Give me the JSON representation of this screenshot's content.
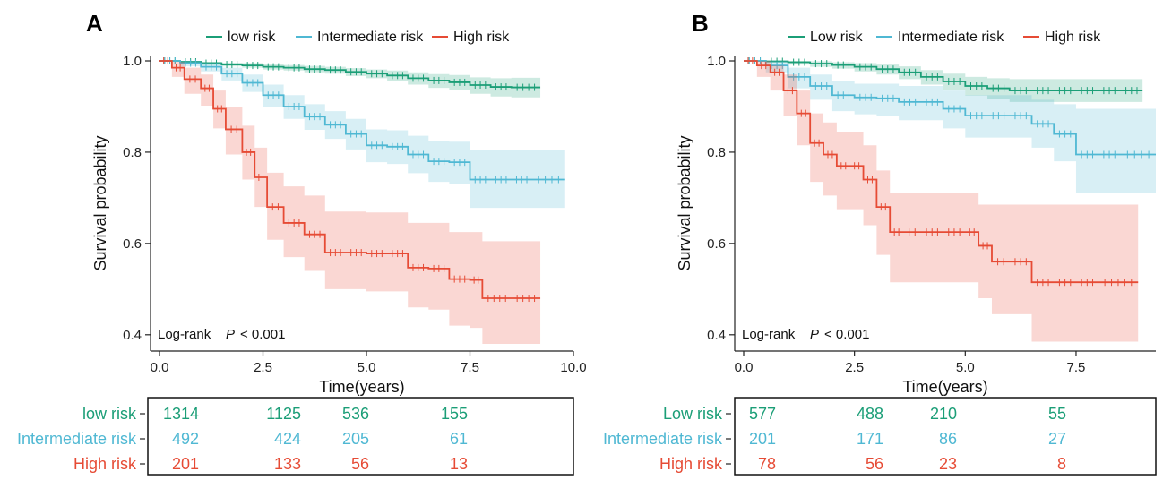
{
  "colors": {
    "low": "#1b9e77",
    "intermediate": "#4fb8d3",
    "high": "#e64b35"
  },
  "chart_data": [
    {
      "type": "line",
      "panel_label": "A",
      "xlabel": "Time(years)",
      "ylabel": "Survival probability",
      "xlim": [
        0,
        10
      ],
      "ylim": [
        0.38,
        1.0
      ],
      "xticks": [
        "0.0",
        "2.5",
        "5.0",
        "7.5",
        "10.0"
      ],
      "xtick_values": [
        0,
        2.5,
        5,
        7.5,
        10
      ],
      "yticks": [
        "0.4",
        "0.6",
        "0.8",
        "1.0"
      ],
      "ytick_values": [
        0.4,
        0.6,
        0.8,
        1.0
      ],
      "annotation": {
        "prefix": "Log-rank",
        "stat": "P",
        "value": "< 0.001"
      },
      "series": [
        {
          "name": "low risk",
          "color_key": "low",
          "x": [
            0,
            0.5,
            1.0,
            1.5,
            2.0,
            2.5,
            3.0,
            3.5,
            4.0,
            4.5,
            5.0,
            5.5,
            6.0,
            6.5,
            7.0,
            7.5,
            8.0,
            8.5,
            9.2
          ],
          "values": [
            1.0,
            0.998,
            0.995,
            0.992,
            0.99,
            0.987,
            0.985,
            0.982,
            0.98,
            0.976,
            0.972,
            0.968,
            0.962,
            0.957,
            0.953,
            0.947,
            0.943,
            0.942,
            0.942
          ],
          "ci_upper": [
            1.0,
            1.0,
            0.998,
            0.996,
            0.995,
            0.993,
            0.991,
            0.989,
            0.987,
            0.984,
            0.981,
            0.979,
            0.975,
            0.971,
            0.969,
            0.964,
            0.962,
            0.963,
            0.963
          ],
          "ci_lower": [
            1.0,
            0.995,
            0.991,
            0.988,
            0.985,
            0.981,
            0.979,
            0.975,
            0.972,
            0.967,
            0.962,
            0.956,
            0.948,
            0.941,
            0.936,
            0.928,
            0.922,
            0.92,
            0.92
          ]
        },
        {
          "name": "Intermediate risk",
          "color_key": "intermediate",
          "x": [
            0,
            0.5,
            1.0,
            1.5,
            2.0,
            2.5,
            3.0,
            3.5,
            4.0,
            4.5,
            5.0,
            5.5,
            6.0,
            6.5,
            7.0,
            7.5,
            8.0,
            8.5,
            9.0,
            9.8
          ],
          "values": [
            1.0,
            0.995,
            0.987,
            0.972,
            0.952,
            0.925,
            0.9,
            0.878,
            0.86,
            0.84,
            0.815,
            0.812,
            0.795,
            0.78,
            0.778,
            0.74,
            0.74,
            0.74,
            0.74,
            0.74
          ],
          "ci_upper": [
            1.0,
            1.0,
            0.996,
            0.985,
            0.97,
            0.948,
            0.925,
            0.905,
            0.89,
            0.873,
            0.85,
            0.848,
            0.836,
            0.824,
            0.823,
            0.805,
            0.805,
            0.805,
            0.805,
            0.805
          ],
          "ci_lower": [
            1.0,
            0.988,
            0.977,
            0.957,
            0.932,
            0.9,
            0.873,
            0.849,
            0.829,
            0.806,
            0.778,
            0.774,
            0.754,
            0.735,
            0.731,
            0.678,
            0.678,
            0.678,
            0.678,
            0.678
          ]
        },
        {
          "name": "High risk",
          "color_key": "high",
          "x": [
            0,
            0.3,
            0.6,
            1.0,
            1.3,
            1.6,
            2.0,
            2.3,
            2.6,
            3.0,
            3.5,
            4.0,
            4.5,
            5.0,
            5.5,
            6.0,
            6.5,
            7.0,
            7.5,
            7.8,
            8.5,
            9.2
          ],
          "values": [
            1.0,
            0.985,
            0.96,
            0.94,
            0.895,
            0.85,
            0.8,
            0.745,
            0.68,
            0.645,
            0.62,
            0.58,
            0.58,
            0.578,
            0.578,
            0.547,
            0.545,
            0.522,
            0.52,
            0.48,
            0.48,
            0.48
          ],
          "ci_upper": [
            1.0,
            0.998,
            0.985,
            0.97,
            0.935,
            0.9,
            0.858,
            0.81,
            0.755,
            0.725,
            0.705,
            0.67,
            0.67,
            0.668,
            0.668,
            0.645,
            0.645,
            0.625,
            0.625,
            0.605,
            0.605,
            0.605
          ],
          "ci_lower": [
            1.0,
            0.965,
            0.928,
            0.902,
            0.852,
            0.795,
            0.74,
            0.68,
            0.608,
            0.57,
            0.54,
            0.5,
            0.5,
            0.495,
            0.495,
            0.46,
            0.455,
            0.42,
            0.415,
            0.38,
            0.38,
            0.38
          ]
        }
      ],
      "risk_table": [
        {
          "label": "low risk",
          "color_key": "low",
          "counts": [
            "1314",
            "1125",
            "536",
            "155"
          ]
        },
        {
          "label": "Intermediate risk",
          "color_key": "intermediate",
          "counts": [
            "492",
            "424",
            "205",
            "61"
          ]
        },
        {
          "label": "High risk",
          "color_key": "high",
          "counts": [
            "201",
            "133",
            "56",
            "13"
          ]
        }
      ]
    },
    {
      "type": "line",
      "panel_label": "B",
      "xlabel": "Time(years)",
      "ylabel": "Survival probability",
      "xlim": [
        0,
        9.3
      ],
      "ylim": [
        0.38,
        1.0
      ],
      "xticks": [
        "0.0",
        "2.5",
        "5.0",
        "7.5"
      ],
      "xtick_values": [
        0,
        2.5,
        5,
        7.5
      ],
      "yticks": [
        "0.4",
        "0.6",
        "0.8",
        "1.0"
      ],
      "ytick_values": [
        0.4,
        0.6,
        0.8,
        1.0
      ],
      "annotation": {
        "prefix": "Log-rank",
        "stat": "P",
        "value": "< 0.001"
      },
      "series": [
        {
          "name": "Low risk",
          "color_key": "low",
          "x": [
            0,
            0.5,
            1.0,
            1.5,
            2.0,
            2.5,
            3.0,
            3.5,
            4.0,
            4.5,
            5.0,
            5.5,
            6.0,
            6.5,
            7.0,
            7.5,
            8.0,
            8.5,
            9.0
          ],
          "values": [
            1.0,
            0.999,
            0.997,
            0.994,
            0.991,
            0.987,
            0.982,
            0.975,
            0.965,
            0.955,
            0.945,
            0.94,
            0.935,
            0.935,
            0.935,
            0.935,
            0.935,
            0.935,
            0.935
          ],
          "ci_upper": [
            1.0,
            1.0,
            1.0,
            0.999,
            0.997,
            0.995,
            0.992,
            0.988,
            0.98,
            0.972,
            0.965,
            0.962,
            0.96,
            0.96,
            0.96,
            0.96,
            0.96,
            0.96,
            0.96
          ],
          "ci_lower": [
            1.0,
            0.996,
            0.992,
            0.987,
            0.983,
            0.977,
            0.97,
            0.96,
            0.948,
            0.936,
            0.924,
            0.917,
            0.91,
            0.91,
            0.91,
            0.91,
            0.91,
            0.91,
            0.91
          ]
        },
        {
          "name": "Intermediate risk",
          "color_key": "intermediate",
          "x": [
            0,
            0.5,
            1.0,
            1.5,
            2.0,
            2.5,
            3.0,
            3.5,
            4.0,
            4.5,
            5.0,
            5.5,
            6.0,
            6.5,
            7.0,
            7.5,
            8.0,
            8.5,
            9.3
          ],
          "values": [
            1.0,
            0.99,
            0.965,
            0.945,
            0.925,
            0.92,
            0.918,
            0.91,
            0.91,
            0.895,
            0.88,
            0.88,
            0.88,
            0.862,
            0.84,
            0.795,
            0.795,
            0.795,
            0.795
          ],
          "ci_upper": [
            1.0,
            1.0,
            0.985,
            0.97,
            0.955,
            0.95,
            0.95,
            0.945,
            0.945,
            0.935,
            0.925,
            0.925,
            0.925,
            0.915,
            0.905,
            0.895,
            0.895,
            0.895,
            0.895
          ],
          "ci_lower": [
            1.0,
            0.975,
            0.94,
            0.915,
            0.89,
            0.883,
            0.88,
            0.87,
            0.87,
            0.852,
            0.832,
            0.832,
            0.832,
            0.81,
            0.78,
            0.71,
            0.71,
            0.71,
            0.71
          ]
        },
        {
          "name": "High risk",
          "color_key": "high",
          "x": [
            0,
            0.3,
            0.6,
            0.9,
            1.2,
            1.5,
            1.8,
            2.1,
            2.4,
            2.7,
            3.0,
            3.3,
            3.6,
            4.0,
            4.5,
            5.0,
            5.3,
            5.6,
            6.0,
            6.5,
            7.0,
            7.5,
            8.0,
            8.9
          ],
          "values": [
            1.0,
            0.99,
            0.975,
            0.935,
            0.885,
            0.82,
            0.795,
            0.77,
            0.77,
            0.74,
            0.68,
            0.625,
            0.625,
            0.625,
            0.625,
            0.625,
            0.595,
            0.56,
            0.56,
            0.515,
            0.515,
            0.515,
            0.515,
            0.515
          ],
          "ci_upper": [
            1.0,
            1.0,
            0.99,
            0.97,
            0.935,
            0.885,
            0.865,
            0.845,
            0.845,
            0.815,
            0.76,
            0.71,
            0.71,
            0.71,
            0.71,
            0.71,
            0.685,
            0.685,
            0.685,
            0.685,
            0.685,
            0.685,
            0.685,
            0.685
          ],
          "ci_lower": [
            1.0,
            0.965,
            0.935,
            0.88,
            0.815,
            0.735,
            0.705,
            0.675,
            0.675,
            0.64,
            0.575,
            0.515,
            0.515,
            0.515,
            0.515,
            0.515,
            0.48,
            0.445,
            0.445,
            0.385,
            0.385,
            0.385,
            0.385,
            0.385
          ]
        }
      ],
      "risk_table": [
        {
          "label": "Low risk",
          "color_key": "low",
          "counts": [
            "577",
            "488",
            "210",
            "55"
          ]
        },
        {
          "label": "Intermediate risk",
          "color_key": "intermediate",
          "counts": [
            "201",
            "171",
            "86",
            "27"
          ]
        },
        {
          "label": "High risk",
          "color_key": "high",
          "counts": [
            "78",
            "56",
            "23",
            "8"
          ]
        }
      ]
    }
  ]
}
